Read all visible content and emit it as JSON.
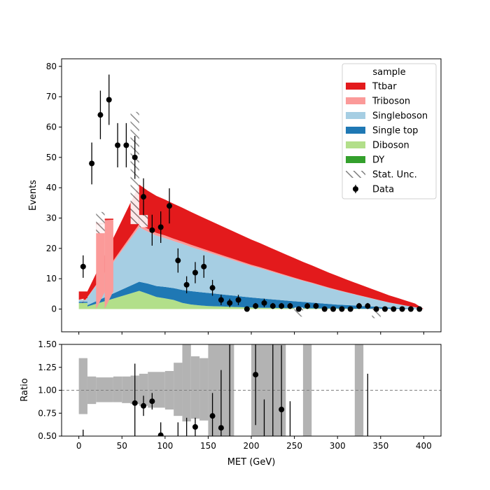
{
  "chart_data": {
    "type": "area",
    "xlabel": "MET (GeV)",
    "main": {
      "ylabel": "Events",
      "xlim": [
        -20,
        420
      ],
      "ylim": [
        -7.5,
        82.5
      ],
      "yticks": [
        0,
        10,
        20,
        30,
        40,
        50,
        60,
        70,
        80
      ],
      "stack_grid_x": [
        0,
        70,
        80,
        90,
        100,
        110,
        120,
        130,
        140,
        150,
        160,
        170,
        180,
        190,
        200,
        210,
        220,
        230,
        240,
        250,
        260,
        270,
        280,
        290,
        300,
        310,
        320,
        330,
        340,
        350,
        360,
        370,
        380,
        390,
        400
      ],
      "series": [
        {
          "name": "DY",
          "color": "#33a02c",
          "values": [
            0,
            0,
            0,
            0,
            0,
            0,
            0,
            0,
            0,
            0,
            0,
            0,
            0,
            0,
            0,
            0,
            0,
            0,
            0,
            0,
            0,
            0,
            0,
            0,
            0,
            0,
            0,
            0,
            0,
            0,
            0,
            0,
            0,
            0,
            0
          ]
        },
        {
          "name": "Diboson",
          "color": "#b2df8a",
          "values": [
            0.0,
            6.0,
            5.0,
            4.0,
            3.5,
            3.0,
            2.0,
            1.5,
            1.2,
            1.0,
            0.9,
            0.8,
            0.7,
            0.6,
            0.5,
            0.45,
            0.4,
            0.35,
            0.3,
            0.27,
            0.25,
            0.22,
            0.2,
            0.18,
            0.16,
            0.14,
            0.12,
            0.1,
            0.08,
            0.06,
            0.05,
            0.04,
            0.03,
            0.02,
            0.0
          ]
        },
        {
          "name": "Single top",
          "color": "#1f78b4",
          "values": [
            0.0,
            3.0,
            3.4,
            3.6,
            3.8,
            3.9,
            4.3,
            4.4,
            4.4,
            4.3,
            4.1,
            3.9,
            3.7,
            3.5,
            3.3,
            3.1,
            2.9,
            2.7,
            2.5,
            2.3,
            2.1,
            1.9,
            1.7,
            1.5,
            1.3,
            1.2,
            1.05,
            0.9,
            0.75,
            0.6,
            0.45,
            0.35,
            0.25,
            0.15,
            0.0
          ]
        },
        {
          "name": "Singleboson",
          "color": "#a6cee3",
          "values": [
            0.0,
            18.0,
            17.1,
            16.6,
            16.1,
            15.5,
            15.2,
            14.6,
            14.0,
            13.4,
            12.8,
            12.2,
            11.6,
            11.0,
            10.4,
            9.9,
            9.3,
            8.7,
            8.1,
            7.5,
            6.9,
            6.4,
            5.8,
            5.2,
            4.7,
            4.1,
            3.6,
            3.1,
            2.6,
            2.1,
            1.6,
            1.2,
            0.8,
            0.4,
            0.0
          ]
        },
        {
          "name": "Triboson",
          "color": "#fb9a99",
          "values": [
            0.0,
            1.0,
            0.95,
            0.9,
            0.85,
            0.8,
            0.75,
            0.7,
            0.65,
            0.6,
            0.55,
            0.5,
            0.47,
            0.44,
            0.41,
            0.38,
            0.35,
            0.32,
            0.29,
            0.26,
            0.24,
            0.22,
            0.2,
            0.18,
            0.16,
            0.14,
            0.12,
            0.1,
            0.08,
            0.07,
            0.06,
            0.05,
            0.03,
            0.02,
            0.0
          ]
        },
        {
          "name": "Ttbar",
          "color": "#e31a1c",
          "values": [
            0.0,
            13.0,
            12.55,
            12.2,
            11.85,
            11.5,
            11.15,
            10.8,
            10.45,
            10.1,
            9.75,
            9.4,
            9.03,
            8.66,
            8.29,
            7.92,
            7.55,
            7.18,
            6.81,
            6.44,
            6.06,
            5.69,
            5.32,
            4.95,
            4.58,
            4.21,
            3.84,
            3.47,
            3.1,
            2.72,
            2.35,
            1.98,
            1.61,
            1.24,
            0.0
          ]
        }
      ],
      "low_bins": [
        {
          "x0": 0,
          "x1": 10,
          "stack": [
            0,
            0,
            2,
            2.4,
            3.0,
            3.1,
            5.8
          ]
        },
        {
          "x0": 20,
          "x1": 30,
          "stack": [
            0,
            0,
            0,
            0,
            0,
            27.7,
            28.5
          ]
        },
        {
          "x0": 30,
          "x1": 40,
          "stack": [
            0,
            0,
            0,
            0,
            0,
            29.3,
            29.8
          ]
        }
      ],
      "stat_unc_bins": [
        {
          "x0": 20,
          "x1": 30,
          "lo": 25,
          "hi": 32
        },
        {
          "x0": 60,
          "x1": 70,
          "lo": 28,
          "hi": 65
        },
        {
          "x0": 70,
          "x1": 80,
          "lo": 27,
          "hi": 31
        },
        {
          "x0": 250,
          "x1": 260,
          "lo": -2.5,
          "hi": 0.5
        },
        {
          "x0": 340,
          "x1": 350,
          "lo": -3,
          "hi": 0.3
        }
      ],
      "data": {
        "name": "Data",
        "x": [
          5,
          15,
          25,
          35,
          45,
          55,
          65,
          75,
          85,
          95,
          105,
          115,
          125,
          135,
          145,
          155,
          165,
          175,
          185,
          195,
          205,
          215,
          225,
          235,
          245,
          255,
          265,
          275,
          285,
          295,
          305,
          315,
          325,
          335,
          345,
          355,
          365,
          375,
          385,
          395
        ],
        "y": [
          14,
          48,
          64,
          69,
          54,
          54,
          50,
          37,
          26,
          27,
          34,
          16,
          8,
          12,
          14,
          7,
          3,
          2,
          3,
          0,
          1,
          2,
          1,
          1,
          1,
          0,
          1,
          1,
          0,
          0,
          0,
          0,
          1,
          1,
          0,
          0,
          0,
          0,
          0,
          0
        ],
        "yerr": [
          3.7,
          6.9,
          8.0,
          8.3,
          7.3,
          7.3,
          7.1,
          6.1,
          5.1,
          5.2,
          5.8,
          4.0,
          2.8,
          3.5,
          3.7,
          2.6,
          1.7,
          1.4,
          1.7,
          0,
          1,
          1.4,
          1,
          1,
          1,
          0,
          1,
          1,
          0,
          0,
          0,
          0,
          1,
          1,
          0,
          0,
          0,
          0,
          0,
          0
        ]
      },
      "legend": {
        "title": "sample",
        "placement": "top-right",
        "entries": [
          "Ttbar",
          "Triboson",
          "Singleboson",
          "Single top",
          "Diboson",
          "DY",
          "Stat. Unc.",
          "Data"
        ]
      }
    },
    "ratio": {
      "ylabel": "Ratio",
      "ylim": [
        0.5,
        1.5
      ],
      "yticks": [
        "0.50",
        "0.75",
        "1.00",
        "1.25",
        "1.50"
      ],
      "reference_line": 1.0,
      "xticks": [
        "0",
        "50",
        "100",
        "150",
        "200",
        "250",
        "300",
        "350",
        "400"
      ],
      "band": [
        {
          "x0": 0,
          "x1": 10,
          "lo": 0.74,
          "hi": 1.35
        },
        {
          "x0": 10,
          "x1": 20,
          "lo": 0.85,
          "hi": 1.15
        },
        {
          "x0": 20,
          "x1": 40,
          "lo": 0.87,
          "hi": 1.14
        },
        {
          "x0": 40,
          "x1": 50,
          "lo": 0.87,
          "hi": 1.15
        },
        {
          "x0": 50,
          "x1": 60,
          "lo": 0.86,
          "hi": 1.15
        },
        {
          "x0": 60,
          "x1": 70,
          "lo": 0.85,
          "hi": 1.16
        },
        {
          "x0": 70,
          "x1": 80,
          "lo": 0.83,
          "hi": 1.18
        },
        {
          "x0": 80,
          "x1": 90,
          "lo": 0.81,
          "hi": 1.2
        },
        {
          "x0": 90,
          "x1": 100,
          "lo": 0.81,
          "hi": 1.2
        },
        {
          "x0": 100,
          "x1": 110,
          "lo": 0.79,
          "hi": 1.21
        },
        {
          "x0": 110,
          "x1": 120,
          "lo": 0.72,
          "hi": 1.3
        },
        {
          "x0": 120,
          "x1": 130,
          "lo": 0.66,
          "hi": 1.5
        },
        {
          "x0": 130,
          "x1": 140,
          "lo": 0.69,
          "hi": 1.37
        },
        {
          "x0": 140,
          "x1": 150,
          "lo": 0.67,
          "hi": 1.35
        },
        {
          "x0": 150,
          "x1": 180,
          "lo": 0.5,
          "hi": 1.5
        },
        {
          "x0": 200,
          "x1": 240,
          "lo": 0.5,
          "hi": 1.5
        },
        {
          "x0": 260,
          "x1": 270,
          "lo": 0.5,
          "hi": 1.5
        },
        {
          "x0": 320,
          "x1": 330,
          "lo": 0.5,
          "hi": 1.5
        }
      ],
      "points": [
        {
          "x": 65,
          "y": 0.86,
          "err": 0.43
        },
        {
          "x": 75,
          "y": 0.83,
          "err": 0.11
        },
        {
          "x": 85,
          "y": 0.88,
          "err": 0.09
        },
        {
          "x": 95,
          "y": 0.51,
          "err": 0.14
        },
        {
          "x": 135,
          "y": 0.6,
          "err": 0.1
        },
        {
          "x": 155,
          "y": 0.72,
          "err": 0.25
        },
        {
          "x": 165,
          "y": 0.59,
          "err": 0.63
        },
        {
          "x": 205,
          "y": 1.17,
          "err": 0.55
        },
        {
          "x": 235,
          "y": 0.79,
          "err": 0.7
        }
      ],
      "error_only": [
        {
          "x": 5,
          "lo": 0.5,
          "hi": 0.57
        },
        {
          "x": 115,
          "lo": 0.5,
          "hi": 0.65
        },
        {
          "x": 125,
          "lo": 0.5,
          "hi": 0.7
        },
        {
          "x": 175,
          "lo": 0.5,
          "hi": 1.5
        },
        {
          "x": 215,
          "lo": 0.5,
          "hi": 0.9
        },
        {
          "x": 225,
          "lo": 0.5,
          "hi": 1.5
        },
        {
          "x": 245,
          "lo": 0.5,
          "hi": 0.88
        },
        {
          "x": 335,
          "lo": 0.5,
          "hi": 1.18
        }
      ]
    }
  }
}
